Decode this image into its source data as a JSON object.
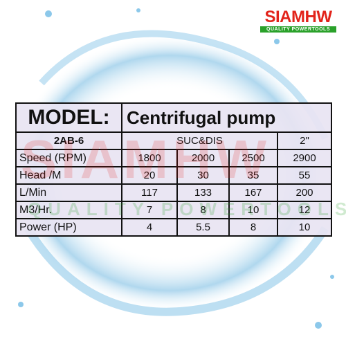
{
  "logo": {
    "brand": "SIAMHW",
    "tagline": "QUALITY POWERTOOLS"
  },
  "watermark": {
    "brand": "SIAMHW",
    "tagline": "QUALITY POWERTOOLS"
  },
  "table": {
    "model_label": "MODEL:",
    "model_value": "Centrifugal pump",
    "code": "2AB-6",
    "port_label": "SUC&DIS",
    "port_size": "2\"",
    "rows": [
      [
        "Speed (RPM)",
        "1800",
        "2000",
        "2500",
        "2900"
      ],
      [
        "Head /M",
        "20",
        "30",
        "35",
        "55"
      ],
      [
        "L/Min",
        "117",
        "133",
        "167",
        "200"
      ],
      [
        "M3/Hr.",
        "7",
        "8",
        "10",
        "12"
      ],
      [
        "Power (HP)",
        "4",
        "5.5",
        "8",
        "10"
      ]
    ]
  }
}
